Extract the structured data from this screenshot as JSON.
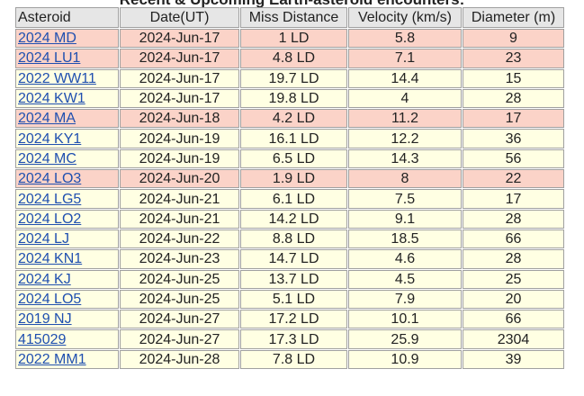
{
  "title": "Recent & Upcoming Earth-asteroid encounters:",
  "table": {
    "columns": [
      "Asteroid",
      "Date(UT)",
      "Miss Distance",
      "Velocity (km/s)",
      "Diameter (m)"
    ],
    "rows": [
      {
        "cells": [
          "2024 MD",
          "2024-Jun-17",
          "1 LD",
          "5.8",
          "9"
        ],
        "color": "#fbd3c8"
      },
      {
        "cells": [
          "2024 LU1",
          "2024-Jun-17",
          "4.8 LD",
          "7.1",
          "23"
        ],
        "color": "#fbd3c8"
      },
      {
        "cells": [
          "2022 WW11",
          "2024-Jun-17",
          "19.7 LD",
          "14.4",
          "15"
        ],
        "color": "#ffffe3"
      },
      {
        "cells": [
          "2024 KW1",
          "2024-Jun-17",
          "19.8 LD",
          "4",
          "28"
        ],
        "color": "#ffffe3"
      },
      {
        "cells": [
          "2024 MA",
          "2024-Jun-18",
          "4.2 LD",
          "11.2",
          "17"
        ],
        "color": "#fbd3c8"
      },
      {
        "cells": [
          "2024 KY1",
          "2024-Jun-19",
          "16.1 LD",
          "12.2",
          "36"
        ],
        "color": "#ffffe3"
      },
      {
        "cells": [
          "2024 MC",
          "2024-Jun-19",
          "6.5 LD",
          "14.3",
          "56"
        ],
        "color": "#ffffe3"
      },
      {
        "cells": [
          "2024 LO3",
          "2024-Jun-20",
          "1.9 LD",
          "8",
          "22"
        ],
        "color": "#fbd3c8"
      },
      {
        "cells": [
          "2024 LG5",
          "2024-Jun-21",
          "6.1 LD",
          "7.5",
          "17"
        ],
        "color": "#ffffe3"
      },
      {
        "cells": [
          "2024 LO2",
          "2024-Jun-21",
          "14.2 LD",
          "9.1",
          "28"
        ],
        "color": "#ffffe3"
      },
      {
        "cells": [
          "2024 LJ",
          "2024-Jun-22",
          "8.8 LD",
          "18.5",
          "66"
        ],
        "color": "#ffffe3"
      },
      {
        "cells": [
          "2024 KN1",
          "2024-Jun-23",
          "14.7 LD",
          "4.6",
          "28"
        ],
        "color": "#ffffe3"
      },
      {
        "cells": [
          "2024 KJ",
          "2024-Jun-25",
          "13.7 LD",
          "4.5",
          "25"
        ],
        "color": "#ffffe3"
      },
      {
        "cells": [
          "2024 LO5",
          "2024-Jun-25",
          "5.1 LD",
          "7.9",
          "20"
        ],
        "color": "#ffffe3"
      },
      {
        "cells": [
          "2019 NJ",
          "2024-Jun-27",
          "17.2 LD",
          "10.1",
          "66"
        ],
        "color": "#ffffe3"
      },
      {
        "cells": [
          "415029",
          "2024-Jun-27",
          "17.3 LD",
          "25.9",
          "2304"
        ],
        "color": "#ffffe3"
      },
      {
        "cells": [
          "2022 MM1",
          "2024-Jun-28",
          "7.8 LD",
          "10.9",
          "39"
        ],
        "color": "#ffffe3"
      }
    ]
  }
}
